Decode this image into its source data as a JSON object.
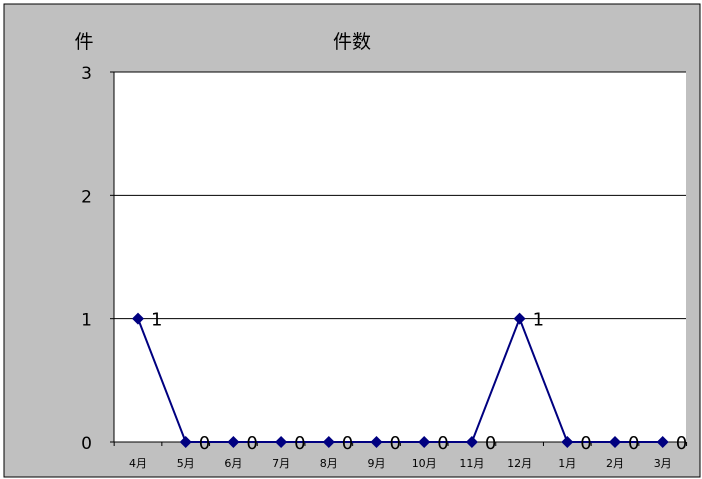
{
  "chart_data": {
    "type": "line",
    "title": "件数",
    "ylabel": "件",
    "xlabel": "",
    "categories": [
      "4月",
      "5月",
      "6月",
      "7月",
      "8月",
      "9月",
      "10月",
      "11月",
      "12月",
      "1月",
      "2月",
      "3月"
    ],
    "series": [
      {
        "values": [
          1,
          0,
          0,
          0,
          0,
          0,
          0,
          0,
          1,
          0,
          0,
          0
        ],
        "data_labels": [
          "1",
          "0",
          "0",
          "0",
          "0",
          "0",
          "0",
          "0",
          "1",
          "0",
          "0",
          "0"
        ]
      }
    ],
    "ylim": [
      0,
      3
    ],
    "yticks": [
      "0",
      "1",
      "2",
      "3"
    ],
    "grid": true,
    "legend": "none",
    "colors": {
      "background": "#c0c0c0",
      "plot_area": "#ffffff",
      "series_line": "#000080",
      "gridline": "#000000"
    }
  }
}
